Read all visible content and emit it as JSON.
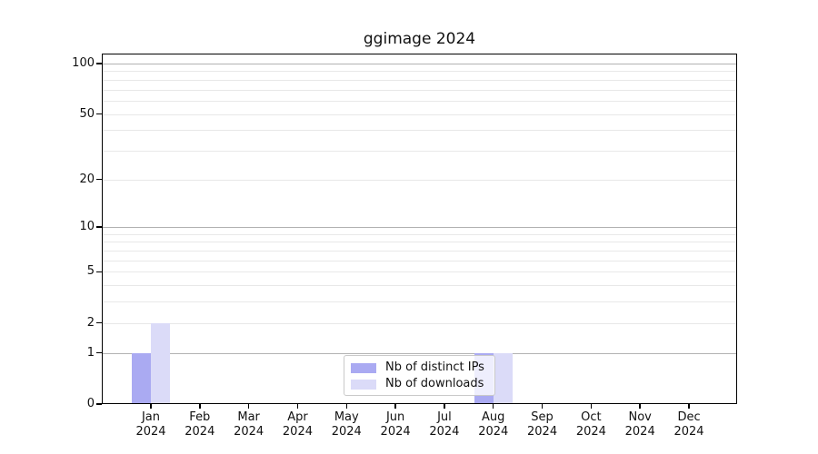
{
  "figure": {
    "title": "ggimage 2024"
  },
  "chart_data": {
    "type": "bar",
    "title": "ggimage 2024",
    "x_tick_months": [
      "Jan",
      "Feb",
      "Mar",
      "Apr",
      "May",
      "Jun",
      "Jul",
      "Aug",
      "Sep",
      "Oct",
      "Nov",
      "Dec"
    ],
    "x_tick_year": "2024",
    "series": [
      {
        "name": "Nb of distinct IPs",
        "color": "#aaaaf2",
        "values": [
          1,
          0,
          0,
          0,
          0,
          0,
          0,
          1,
          0,
          0,
          0,
          0
        ]
      },
      {
        "name": "Nb of downloads",
        "color": "#dbdbf8",
        "values": [
          2,
          0,
          0,
          0,
          0,
          0,
          0,
          1,
          0,
          0,
          0,
          0
        ]
      }
    ],
    "y_axis": {
      "ticks": [
        0,
        1,
        2,
        5,
        10,
        20,
        50,
        100
      ],
      "ylim": [
        0,
        100
      ],
      "scale": "log1p"
    },
    "grid": {
      "major_values": [
        1,
        10,
        100
      ],
      "minor_values": [
        2,
        3,
        4,
        5,
        6,
        7,
        8,
        9,
        20,
        30,
        40,
        50,
        60,
        70,
        80,
        90
      ],
      "major_color": "#b2b2b2",
      "minor_color": "#e8e8e8"
    },
    "legend": {
      "position": "bottom-center"
    }
  }
}
